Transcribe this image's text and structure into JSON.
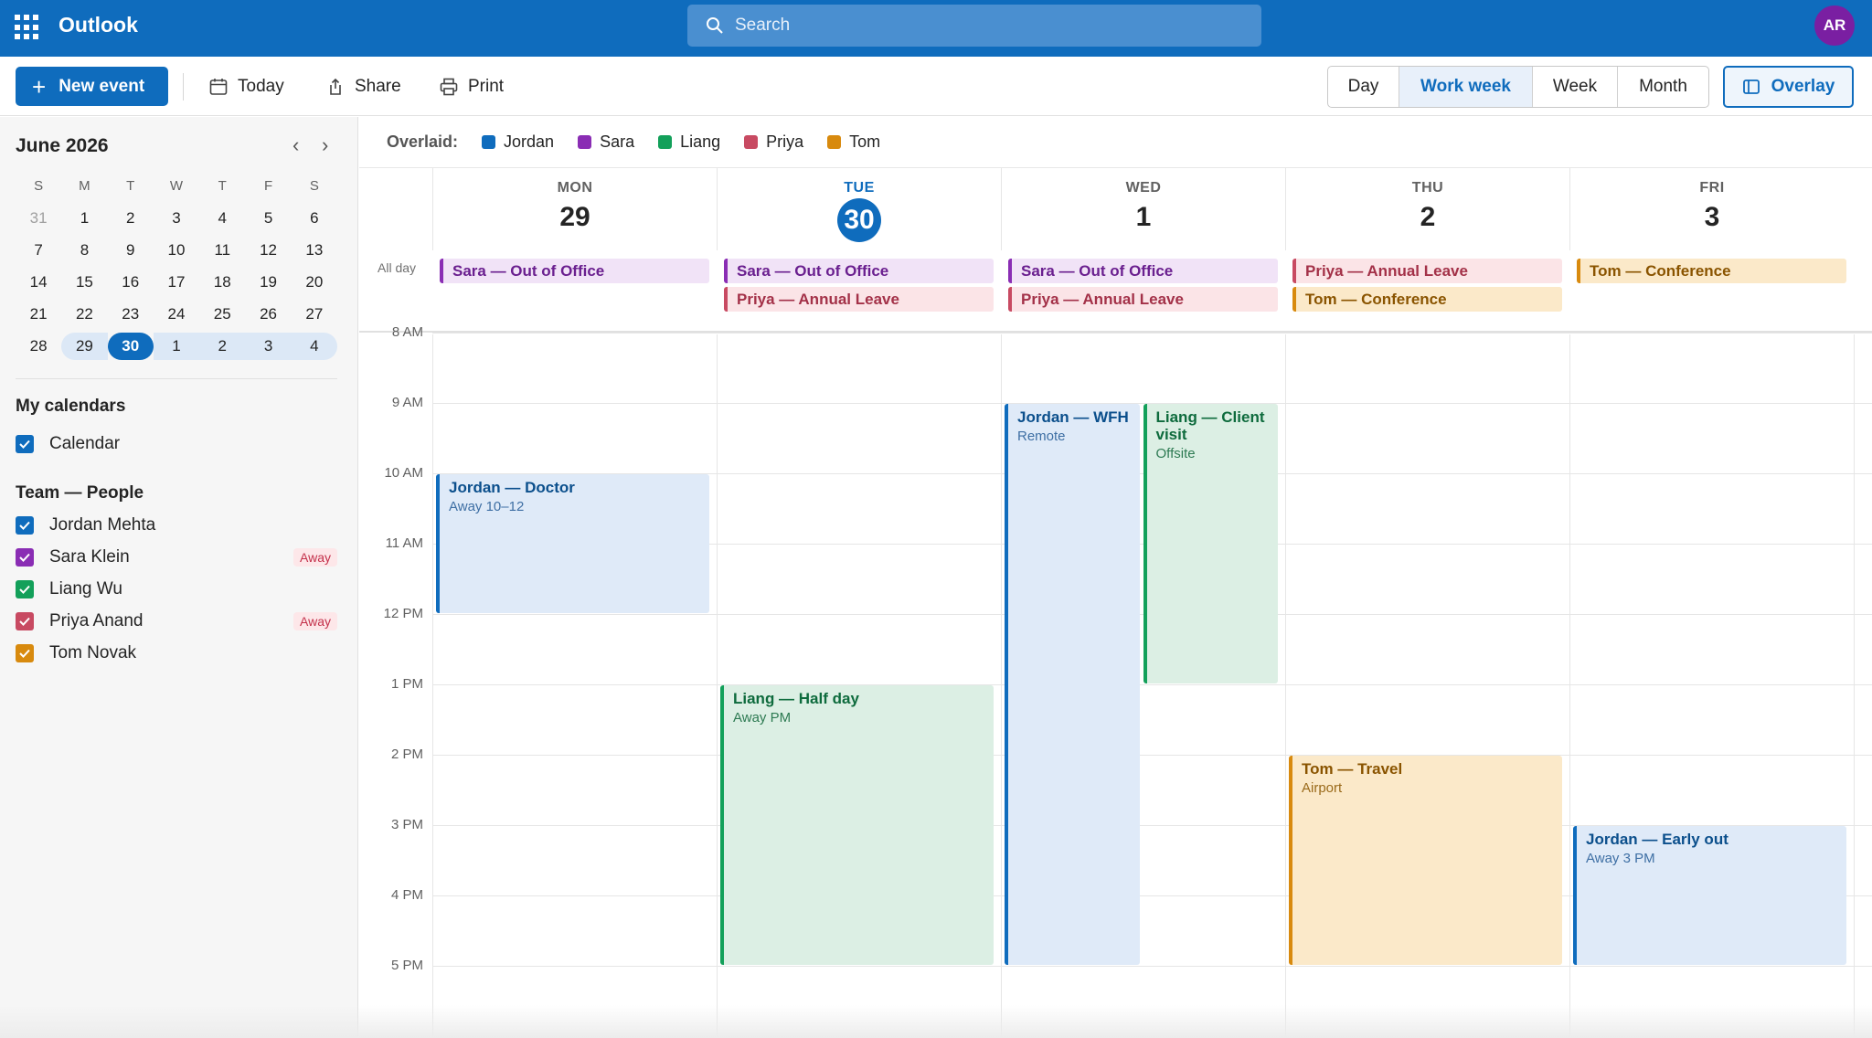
{
  "app": {
    "name": "Outlook",
    "avatar_initials": "AR"
  },
  "search": {
    "placeholder": "Search"
  },
  "toolbar": {
    "new_event": "New event",
    "today": "Today",
    "share": "Share",
    "print": "Print",
    "views": [
      "Day",
      "Work week",
      "Week",
      "Month"
    ],
    "active_view": "Work week",
    "overlay": "Overlay"
  },
  "mini_calendar": {
    "title": "June 2026",
    "weekday_headers": [
      "S",
      "M",
      "T",
      "W",
      "T",
      "F",
      "S"
    ],
    "weeks": [
      [
        "31",
        "1",
        "2",
        "3",
        "4",
        "5",
        "6"
      ],
      [
        "7",
        "8",
        "9",
        "10",
        "11",
        "12",
        "13"
      ],
      [
        "14",
        "15",
        "16",
        "17",
        "18",
        "19",
        "20"
      ],
      [
        "21",
        "22",
        "23",
        "24",
        "25",
        "26",
        "27"
      ],
      [
        "28",
        "29",
        "30",
        "1",
        "2",
        "3",
        "4"
      ]
    ],
    "today": "30"
  },
  "my_calendars": {
    "title": "My calendars",
    "items": [
      {
        "label": "Calendar",
        "color": "#0f6cbd"
      }
    ]
  },
  "team": {
    "title": "Team — People",
    "items": [
      {
        "label": "Jordan Mehta",
        "color": "#0f6cbd",
        "badge": ""
      },
      {
        "label": "Sara Klein",
        "color": "#8a2db4",
        "badge": "Away"
      },
      {
        "label": "Liang Wu",
        "color": "#13a05a",
        "badge": ""
      },
      {
        "label": "Priya Anand",
        "color": "#c84a62",
        "badge": "Away"
      },
      {
        "label": "Tom Novak",
        "color": "#d88a0e",
        "badge": ""
      }
    ]
  },
  "overlaid": {
    "label": "Overlaid:",
    "people": [
      {
        "name": "Jordan",
        "color": "#0f6cbd"
      },
      {
        "name": "Sara",
        "color": "#8a2db4"
      },
      {
        "name": "Liang",
        "color": "#13a05a"
      },
      {
        "name": "Priya",
        "color": "#c84a62"
      },
      {
        "name": "Tom",
        "color": "#d88a0e"
      }
    ]
  },
  "days": [
    {
      "name": "MON",
      "date": "29"
    },
    {
      "name": "TUE",
      "date": "30",
      "today": true
    },
    {
      "name": "WED",
      "date": "1"
    },
    {
      "name": "THU",
      "date": "2"
    },
    {
      "name": "FRI",
      "date": "3"
    }
  ],
  "allday_label": "All day",
  "hours": [
    "8 AM",
    "9 AM",
    "10 AM",
    "11 AM",
    "12 PM",
    "1 PM",
    "2 PM",
    "3 PM",
    "4 PM",
    "5 PM"
  ],
  "allday_events": [
    {
      "day": 0,
      "slot": 0,
      "title": "Sara — Out of Office",
      "color": "purple"
    },
    {
      "day": 1,
      "slot": 0,
      "title": "Sara — Out of Office",
      "color": "purple"
    },
    {
      "day": 1,
      "slot": 1,
      "title": "Priya — Annual Leave",
      "color": "pink"
    },
    {
      "day": 2,
      "slot": 0,
      "title": "Sara — Out of Office",
      "color": "purple"
    },
    {
      "day": 2,
      "slot": 1,
      "title": "Priya — Annual Leave",
      "color": "pink"
    },
    {
      "day": 3,
      "slot": 0,
      "title": "Priya — Annual Leave",
      "color": "pink"
    },
    {
      "day": 3,
      "slot": 1,
      "title": "Tom — Conference",
      "color": "orange"
    },
    {
      "day": 4,
      "slot": 0,
      "title": "Tom — Conference",
      "color": "orange"
    }
  ],
  "events": [
    {
      "day": 0,
      "start": 10,
      "end": 12,
      "col": 0,
      "cols": 1,
      "title": "Jordan — Doctor",
      "sub": "Away 10–12",
      "color": "blue"
    },
    {
      "day": 1,
      "start": 13,
      "end": 17,
      "col": 0,
      "cols": 1,
      "title": "Liang — Half day",
      "sub": "Away PM",
      "color": "green"
    },
    {
      "day": 2,
      "start": 9,
      "end": 17,
      "col": 0,
      "cols": 2,
      "title": "Jordan — WFH",
      "sub": "Remote",
      "color": "blue"
    },
    {
      "day": 2,
      "start": 9,
      "end": 13,
      "col": 1,
      "cols": 2,
      "title": "Liang — Client visit",
      "sub": "Offsite",
      "color": "green"
    },
    {
      "day": 3,
      "start": 14,
      "end": 17,
      "col": 0,
      "cols": 1,
      "title": "Tom — Travel",
      "sub": "Airport",
      "color": "orange"
    },
    {
      "day": 4,
      "start": 15,
      "end": 17,
      "col": 0,
      "cols": 1,
      "title": "Jordan — Early out",
      "sub": "Away 3 PM",
      "color": "blue"
    }
  ]
}
